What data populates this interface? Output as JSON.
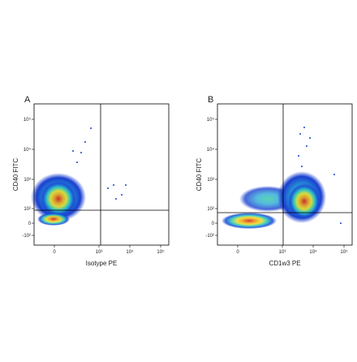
{
  "panels": [
    {
      "label": "A",
      "x_label": "Isotype PE",
      "y_label": "CD40 FITC",
      "x_ticks": [
        "0",
        "10³",
        "10⁴",
        "10⁵"
      ],
      "y_ticks": [
        "10⁵",
        "10⁴",
        "10³",
        "10²",
        "0",
        "-10²"
      ]
    },
    {
      "label": "B",
      "x_label": "CD1w3 PE",
      "y_label": "CD40 FITC",
      "x_ticks": [
        "0",
        "10³",
        "10⁴",
        "10⁵"
      ],
      "y_ticks": [
        "10⁵",
        "10⁴",
        "10³",
        "10²",
        "0",
        "-10²"
      ]
    }
  ]
}
